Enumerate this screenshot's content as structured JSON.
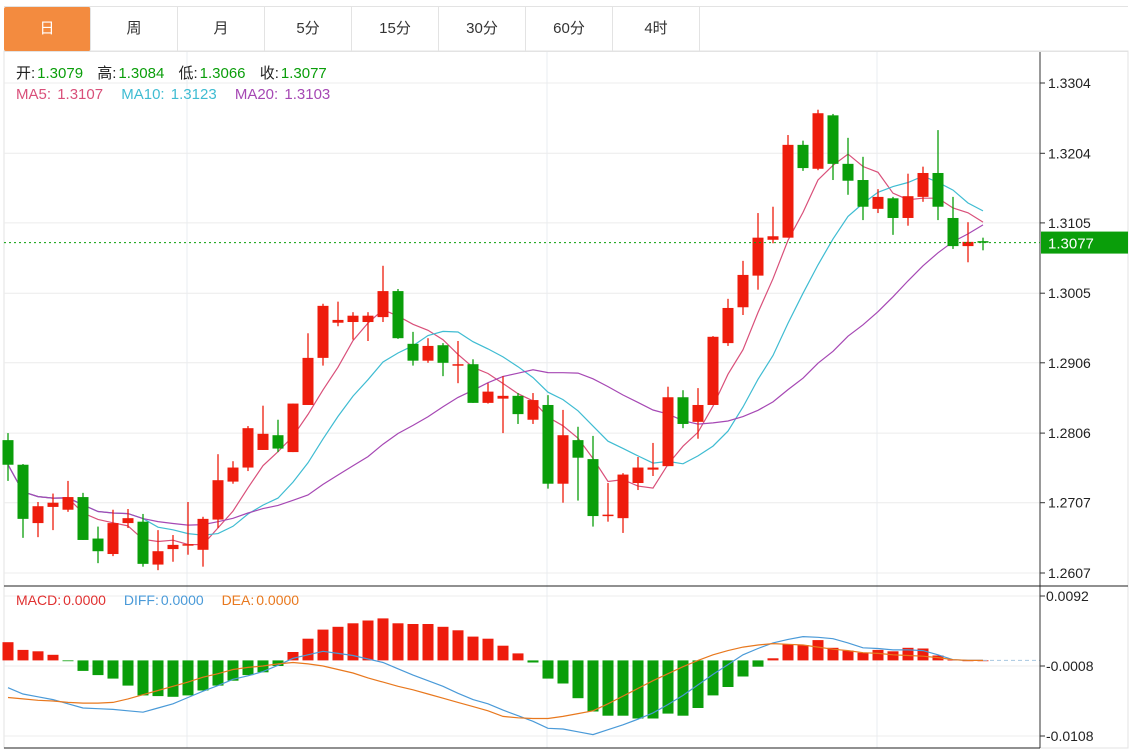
{
  "tabs": [
    {
      "label": "日",
      "active": true
    },
    {
      "label": "周"
    },
    {
      "label": "月"
    },
    {
      "label": "5分"
    },
    {
      "label": "15分"
    },
    {
      "label": "30分"
    },
    {
      "label": "60分"
    },
    {
      "label": "4时"
    }
  ],
  "ohlc_legend": {
    "open_label": "开:",
    "open": "1.3079",
    "high_label": "高:",
    "high": "1.3084",
    "low_label": "低:",
    "low": "1.3066",
    "close_label": "收:",
    "close": "1.3077"
  },
  "ma_legend": {
    "ma5_label": "MA5:",
    "ma5": "1.3107",
    "ma10_label": "MA10:",
    "ma10": "1.3123",
    "ma20_label": "MA20:",
    "ma20": "1.3103"
  },
  "macd_legend": {
    "macd_label": "MACD:",
    "macd": "0.0000",
    "diff_label": "DIFF:",
    "diff": "0.0000",
    "dea_label": "DEA:",
    "dea": "0.0000"
  },
  "colors": {
    "up": "#ee1c0c",
    "down": "#0a9e0a",
    "ma5": "#d9507a",
    "ma10": "#3fbcd2",
    "ma20": "#a648b4",
    "diff": "#4a9ad8",
    "dea": "#e8781e",
    "active_tab": "#f38b3f",
    "last_price": "#0a9e0a"
  },
  "chart_data": {
    "type": "candlestick",
    "price_axis": {
      "ticks": [
        "1.3304",
        "1.3204",
        "1.3105",
        "1.3005",
        "1.2906",
        "1.2806",
        "1.2707",
        "1.2607"
      ],
      "range": [
        1.2607,
        1.3304
      ]
    },
    "last_price_label": "1.3077",
    "ma_periods": [
      5,
      10,
      20
    ],
    "candles": [
      [
        1.2796,
        1.2806,
        1.2738,
        1.2761
      ],
      [
        1.2761,
        1.2762,
        1.2657,
        1.2684
      ],
      [
        1.2678,
        1.2708,
        1.2658,
        1.2702
      ],
      [
        1.2701,
        1.272,
        1.2668,
        1.2707
      ],
      [
        1.2697,
        1.2738,
        1.2694,
        1.2715
      ],
      [
        1.2715,
        1.2721,
        1.2654,
        1.2654
      ],
      [
        1.2656,
        1.2673,
        1.2621,
        1.2638
      ],
      [
        1.2634,
        1.2697,
        1.2631,
        1.2678
      ],
      [
        1.2678,
        1.2698,
        1.2671,
        1.2685
      ],
      [
        1.268,
        1.2691,
        1.2616,
        1.262
      ],
      [
        1.2619,
        1.2668,
        1.2611,
        1.2638
      ],
      [
        1.2641,
        1.2661,
        1.2623,
        1.2647
      ],
      [
        1.2646,
        1.2708,
        1.2633,
        1.2648
      ],
      [
        1.264,
        1.2687,
        1.2616,
        1.2684
      ],
      [
        1.2683,
        1.2776,
        1.2671,
        1.2739
      ],
      [
        1.2737,
        1.2766,
        1.2734,
        1.2757
      ],
      [
        1.2757,
        1.2816,
        1.2752,
        1.2813
      ],
      [
        1.2782,
        1.2845,
        1.2782,
        1.2805
      ],
      [
        1.2803,
        1.2825,
        1.2779,
        1.2784
      ],
      [
        1.2779,
        1.2848,
        1.2779,
        1.2848
      ],
      [
        1.2846,
        1.2948,
        1.2846,
        1.2913
      ],
      [
        1.2913,
        1.299,
        1.2902,
        1.2987
      ],
      [
        1.2963,
        1.2993,
        1.2958,
        1.2967
      ],
      [
        1.2964,
        1.2978,
        1.2939,
        1.2973
      ],
      [
        1.2964,
        1.2978,
        1.2937,
        1.2973
      ],
      [
        1.2971,
        1.3044,
        1.2964,
        1.3008
      ],
      [
        1.3008,
        1.3011,
        1.294,
        1.2941
      ],
      [
        1.2933,
        1.295,
        1.2902,
        1.2909
      ],
      [
        1.2909,
        1.2941,
        1.2906,
        1.293
      ],
      [
        1.2931,
        1.2934,
        1.2887,
        1.2906
      ],
      [
        1.2903,
        1.2937,
        1.2877,
        1.2904
      ],
      [
        1.2904,
        1.2911,
        1.2849,
        1.2849
      ],
      [
        1.2849,
        1.2877,
        1.2848,
        1.2865
      ],
      [
        1.2855,
        1.2887,
        1.2806,
        1.2859
      ],
      [
        1.2859,
        1.2863,
        1.2819,
        1.2833
      ],
      [
        1.2825,
        1.2863,
        1.2819,
        1.2853
      ],
      [
        1.2846,
        1.286,
        1.2727,
        1.2734
      ],
      [
        1.2734,
        1.2839,
        1.2707,
        1.2803
      ],
      [
        1.2796,
        1.2815,
        1.271,
        1.2771
      ],
      [
        1.2769,
        1.2802,
        1.2673,
        1.2688
      ],
      [
        1.2688,
        1.2735,
        1.268,
        1.269
      ],
      [
        1.2685,
        1.2749,
        1.2664,
        1.2747
      ],
      [
        1.2735,
        1.2772,
        1.2725,
        1.2757
      ],
      [
        1.2754,
        1.2792,
        1.2745,
        1.2757
      ],
      [
        1.2759,
        1.2872,
        1.2759,
        1.2857
      ],
      [
        1.2857,
        1.2867,
        1.2813,
        1.2819
      ],
      [
        1.2822,
        1.287,
        1.2798,
        1.2846
      ],
      [
        1.2846,
        1.2944,
        1.2846,
        1.2943
      ],
      [
        1.2934,
        1.2997,
        1.293,
        1.2984
      ],
      [
        1.2985,
        1.3051,
        1.2974,
        1.3031
      ],
      [
        1.303,
        1.3119,
        1.301,
        1.3084
      ],
      [
        1.3081,
        1.3128,
        1.3076,
        1.3086
      ],
      [
        1.3084,
        1.323,
        1.3084,
        1.3216
      ],
      [
        1.3216,
        1.3222,
        1.3179,
        1.3183
      ],
      [
        1.3182,
        1.3266,
        1.318,
        1.3261
      ],
      [
        1.3258,
        1.326,
        1.3166,
        1.3189
      ],
      [
        1.3189,
        1.3226,
        1.3145,
        1.3165
      ],
      [
        1.3166,
        1.3199,
        1.3109,
        1.3128
      ],
      [
        1.3125,
        1.3153,
        1.3119,
        1.3142
      ],
      [
        1.314,
        1.3142,
        1.3088,
        1.3112
      ],
      [
        1.3112,
        1.3175,
        1.3101,
        1.3143
      ],
      [
        1.3142,
        1.3185,
        1.3135,
        1.3176
      ],
      [
        1.3176,
        1.3237,
        1.3109,
        1.3128
      ],
      [
        1.3112,
        1.3142,
        1.3068,
        1.3072
      ],
      [
        1.3072,
        1.3106,
        1.3049,
        1.3078
      ],
      [
        1.3079,
        1.3084,
        1.3066,
        1.3077
      ]
    ],
    "macd_axis": {
      "ticks": [
        "0.0092",
        "-0.0008",
        "-0.0108"
      ],
      "range": [
        -0.0108,
        0.0092
      ]
    },
    "macd_hist": [
      0.0026,
      0.0015,
      0.0013,
      0.0008,
      -0.0001,
      -0.0015,
      -0.0021,
      -0.0026,
      -0.0036,
      -0.005,
      -0.0051,
      -0.0052,
      -0.005,
      -0.0043,
      -0.0036,
      -0.0029,
      -0.0021,
      -0.0017,
      -0.0008,
      0.0012,
      0.0031,
      0.0044,
      0.0048,
      0.0053,
      0.0057,
      0.006,
      0.0053,
      0.0052,
      0.0052,
      0.0048,
      0.0043,
      0.0034,
      0.0031,
      0.0021,
      0.001,
      -0.0003,
      -0.0026,
      -0.0033,
      -0.0054,
      -0.0073,
      -0.0079,
      -0.0079,
      -0.0083,
      -0.0083,
      -0.0076,
      -0.0079,
      -0.0068,
      -0.005,
      -0.0038,
      -0.0023,
      -0.0009,
      0.0003,
      0.0023,
      0.0022,
      0.0029,
      0.0018,
      0.0014,
      0.0011,
      0.0015,
      0.0013,
      0.0018,
      0.0017,
      0.0007,
      0.0001,
      0.0,
      0.0
    ],
    "diff": [
      -0.0039,
      -0.0048,
      -0.0052,
      -0.0056,
      -0.0062,
      -0.0068,
      -0.0069,
      -0.007,
      -0.0072,
      -0.0074,
      -0.0068,
      -0.0062,
      -0.0053,
      -0.0044,
      -0.0036,
      -0.0027,
      -0.0022,
      -0.0016,
      -0.0007,
      0.0003,
      0.0008,
      0.0013,
      0.001,
      0.0007,
      0.0002,
      -0.0003,
      -0.0012,
      -0.0021,
      -0.0029,
      -0.0037,
      -0.0047,
      -0.0056,
      -0.0062,
      -0.0071,
      -0.0079,
      -0.0087,
      -0.0097,
      -0.0098,
      -0.0102,
      -0.0106,
      -0.0099,
      -0.0092,
      -0.0084,
      -0.0075,
      -0.0063,
      -0.005,
      -0.0035,
      -0.002,
      -0.0006,
      0.0008,
      0.0017,
      0.0025,
      0.003,
      0.0034,
      0.0033,
      0.0031,
      0.0025,
      0.0018,
      0.0017,
      0.0015,
      0.0015,
      0.0014,
      0.0008,
      0.0001,
      0.0,
      0.0
    ],
    "dea": [
      -0.0053,
      -0.0055,
      -0.0057,
      -0.0058,
      -0.006,
      -0.0061,
      -0.0061,
      -0.006,
      -0.0055,
      -0.0049,
      -0.0043,
      -0.0037,
      -0.0031,
      -0.0024,
      -0.0019,
      -0.0013,
      -0.001,
      -0.0008,
      -0.0005,
      -0.0003,
      -0.0005,
      -0.0008,
      -0.0013,
      -0.0018,
      -0.0025,
      -0.0031,
      -0.0037,
      -0.0042,
      -0.0048,
      -0.0054,
      -0.006,
      -0.0066,
      -0.0072,
      -0.008,
      -0.0082,
      -0.0083,
      -0.0083,
      -0.008,
      -0.0076,
      -0.0072,
      -0.0062,
      -0.0051,
      -0.004,
      -0.0029,
      -0.0019,
      -0.0009,
      0.0,
      0.0008,
      0.0014,
      0.0019,
      0.0022,
      0.0024,
      0.0023,
      0.0022,
      0.0019,
      0.0016,
      0.0014,
      0.0011,
      0.001,
      0.0008,
      0.0007,
      0.0006,
      0.0004,
      0.0001,
      0.0,
      0.0
    ]
  }
}
